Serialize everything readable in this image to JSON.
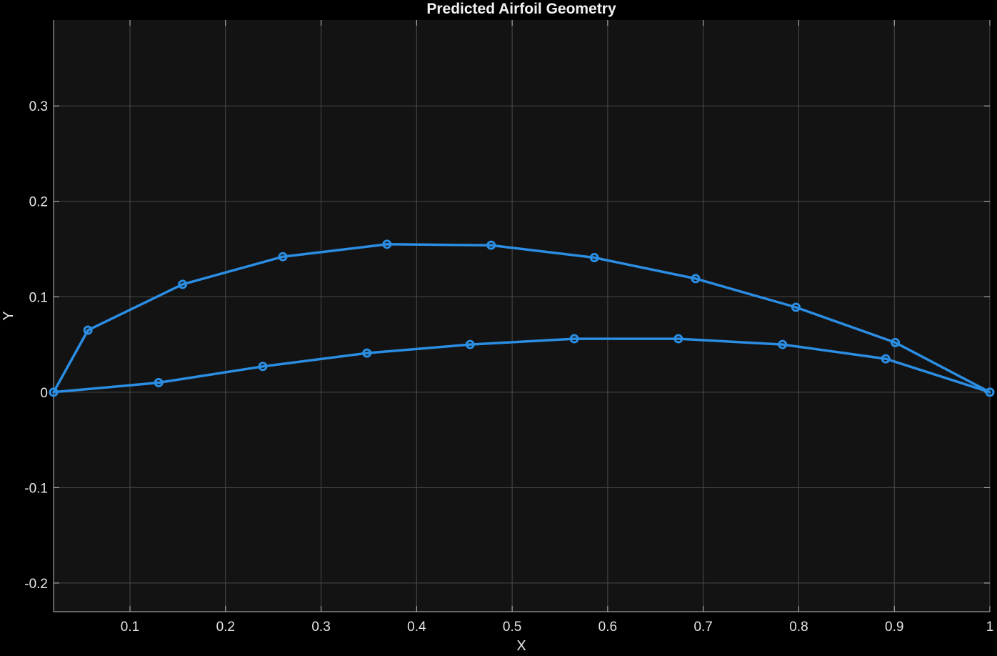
{
  "chart_data": {
    "type": "line",
    "title": "Predicted Airfoil Geometry",
    "xlabel": "X",
    "ylabel": "Y",
    "xlim": [
      0.02,
      1.0
    ],
    "ylim": [
      -0.23,
      0.39
    ],
    "x_ticks": [
      0.1,
      0.2,
      0.3,
      0.4,
      0.5,
      0.6,
      0.7,
      0.8,
      0.9,
      1
    ],
    "x_tick_labels": [
      "0.1",
      "0.2",
      "0.3",
      "0.4",
      "0.5",
      "0.6",
      "0.7",
      "0.8",
      "0.9",
      "1"
    ],
    "y_ticks": [
      -0.2,
      -0.1,
      0,
      0.1,
      0.2,
      0.3
    ],
    "y_tick_labels": [
      "-0.2",
      "-0.1",
      "0",
      "0.1",
      "0.2",
      "0.3"
    ],
    "grid": true,
    "legend": "none",
    "series": [
      {
        "color": "#2b8ee3",
        "marker": "circle",
        "x": [
          0.02,
          0.056,
          0.155,
          0.26,
          0.369,
          0.478,
          0.586,
          0.692,
          0.797,
          0.901,
          1.0
        ],
        "y": [
          0.0,
          0.065,
          0.113,
          0.142,
          0.155,
          0.154,
          0.141,
          0.119,
          0.089,
          0.052,
          0.0
        ]
      },
      {
        "color": "#2b8ee3",
        "marker": "circle",
        "x": [
          0.02,
          0.13,
          0.239,
          0.348,
          0.456,
          0.565,
          0.674,
          0.783,
          0.891,
          1.0
        ],
        "y": [
          0.0,
          0.01,
          0.027,
          0.041,
          0.05,
          0.056,
          0.056,
          0.05,
          0.035,
          0.0
        ]
      }
    ]
  },
  "colors": {
    "background": "#000000",
    "plot_area": "#131313",
    "grid": "#4a4a4a",
    "axis": "#bdbdbd",
    "text": "#e6e6e6",
    "line": "#2b8ee3"
  }
}
